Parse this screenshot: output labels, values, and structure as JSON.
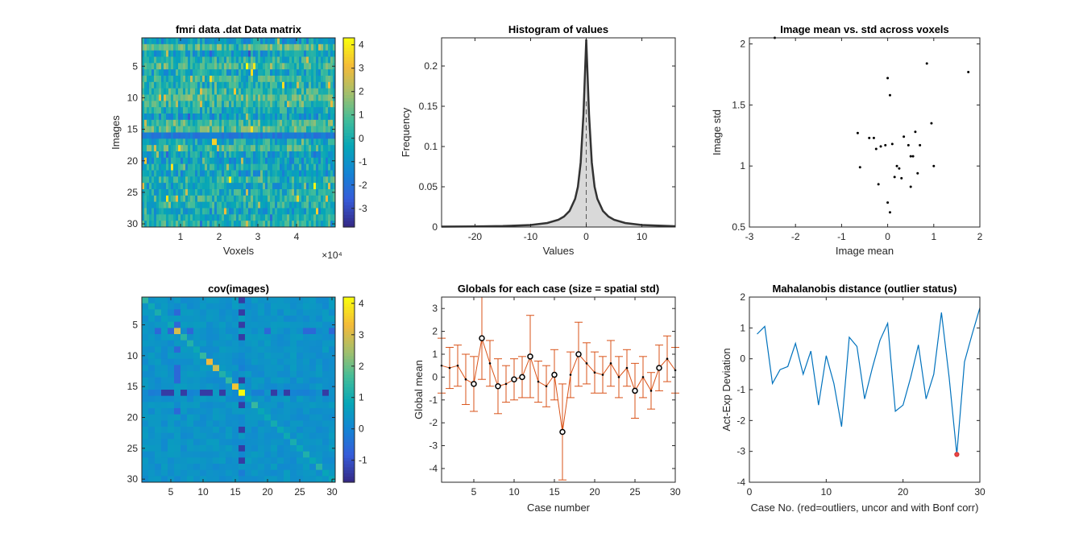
{
  "figure_title": "",
  "panels": [
    {
      "title": "fmri data .dat Data matrix",
      "xlabel": "Voxels",
      "ylabel": "Images",
      "exponent_label": "×10⁴",
      "xticks": [
        "1",
        "2",
        "3",
        "4"
      ],
      "yticks": [
        "5",
        "10",
        "15",
        "20",
        "25",
        "30"
      ],
      "cbar_ticks": [
        "4",
        "3",
        "2",
        "1",
        "0",
        "-1",
        "-2",
        "-3"
      ]
    },
    {
      "title": "Histogram of values",
      "xlabel": "Values",
      "ylabel": "Frequency",
      "xticks": [
        "-20",
        "-10",
        "0",
        "10"
      ],
      "yticks": [
        "0",
        "0.05",
        "0.1",
        "0.15",
        "0.2"
      ]
    },
    {
      "title": "Image mean vs. std across voxels",
      "xlabel": "Image mean",
      "ylabel": "Image std",
      "xticks": [
        "-3",
        "-2",
        "-1",
        "0",
        "1",
        "2"
      ],
      "yticks": [
        "0.5",
        "1",
        "1.5",
        "2"
      ]
    },
    {
      "title": "cov(images)",
      "xlabel": "",
      "ylabel": "",
      "xticks": [
        "5",
        "10",
        "15",
        "20",
        "25",
        "30"
      ],
      "yticks": [
        "5",
        "10",
        "15",
        "20",
        "25",
        "30"
      ],
      "cbar_ticks": [
        "4",
        "3",
        "2",
        "1",
        "0",
        "-1"
      ]
    },
    {
      "title": "Globals for each case (size = spatial std)",
      "xlabel": "Case number",
      "ylabel": "Global mean",
      "xticks": [
        "5",
        "10",
        "15",
        "20",
        "25",
        "30"
      ],
      "yticks": [
        "3",
        "2",
        "1",
        "0",
        "-1",
        "-2",
        "-3",
        "-4"
      ]
    },
    {
      "title": "Mahalanobis distance (outlier status)",
      "xlabel": "Case No. (red=outliers, uncor and with Bonf corr)",
      "ylabel": "Act-Exp Deviation",
      "xticks": [
        "0",
        "10",
        "20",
        "30"
      ],
      "yticks": [
        "2",
        "1",
        "0",
        "-1",
        "-2",
        "-3",
        "-4"
      ]
    }
  ],
  "colors": {
    "line": "#0072BD",
    "errorbar": "#D95319",
    "outlier": "#EE4444",
    "hist_fill": "#D9D9D9",
    "axis": "#262626"
  },
  "chart_data": [
    {
      "type": "heatmap",
      "title": "fmri data .dat Data matrix",
      "xlabel": "Voxels",
      "ylabel": "Images",
      "xlim": [
        0,
        50000
      ],
      "ylim": [
        0.5,
        30.5
      ],
      "rows": 30,
      "color_range": [
        -3.8,
        4.3
      ],
      "colormap": "parula"
    },
    {
      "type": "area",
      "title": "Histogram of values",
      "xlabel": "Values",
      "ylabel": "Frequency",
      "xlim": [
        -26,
        16
      ],
      "ylim": [
        0,
        0.235
      ],
      "x": [
        -26,
        -20,
        -15,
        -10,
        -7,
        -5,
        -4,
        -3,
        -2,
        -1.5,
        -1,
        -0.5,
        0,
        0.5,
        1,
        1.5,
        2,
        3,
        4,
        5,
        7,
        10,
        16
      ],
      "y": [
        0.0005,
        0.0008,
        0.0012,
        0.0025,
        0.005,
        0.009,
        0.013,
        0.02,
        0.035,
        0.05,
        0.08,
        0.14,
        0.233,
        0.14,
        0.08,
        0.05,
        0.035,
        0.02,
        0.013,
        0.009,
        0.005,
        0.0025,
        0.001
      ],
      "mean_line": 0
    },
    {
      "type": "scatter",
      "title": "Image mean vs. std across voxels",
      "xlabel": "Image mean",
      "ylabel": "Image std",
      "xlim": [
        -3,
        2
      ],
      "ylim": [
        0.5,
        2.05
      ],
      "x": [
        -2.45,
        -0.65,
        -0.4,
        -0.3,
        -0.25,
        -0.15,
        -0.05,
        0.0,
        0.05,
        0.1,
        0.15,
        0.2,
        0.3,
        0.35,
        0.45,
        0.5,
        0.55,
        0.6,
        0.65,
        0.7,
        0.85,
        0.95,
        1.0,
        1.75,
        -0.6,
        -0.2,
        0.05,
        0.0,
        0.25,
        0.5
      ],
      "y": [
        2.05,
        1.27,
        1.23,
        1.23,
        1.14,
        1.16,
        1.17,
        1.72,
        1.58,
        1.18,
        0.91,
        1.0,
        0.9,
        1.24,
        1.17,
        1.08,
        1.08,
        1.28,
        0.94,
        1.17,
        1.84,
        1.35,
        1.0,
        1.77,
        0.99,
        0.85,
        0.62,
        0.7,
        0.98,
        0.83
      ]
    },
    {
      "type": "heatmap",
      "title": "cov(images)",
      "xlim": [
        0.5,
        30.5
      ],
      "ylim": [
        0.5,
        30.5
      ],
      "size": 30,
      "color_range": [
        -1.7,
        4.2
      ],
      "colormap": "parula"
    },
    {
      "type": "line",
      "title": "Globals for each case (size = spatial std)",
      "xlabel": "Case number",
      "ylabel": "Global mean",
      "xlim": [
        1,
        30
      ],
      "ylim": [
        -4.6,
        3.5
      ],
      "x": [
        1,
        2,
        3,
        4,
        5,
        6,
        7,
        8,
        9,
        10,
        11,
        12,
        13,
        14,
        15,
        16,
        17,
        18,
        19,
        20,
        21,
        22,
        23,
        24,
        25,
        26,
        27,
        28,
        29,
        30
      ],
      "y": [
        0.5,
        0.4,
        0.5,
        -0.1,
        -0.3,
        1.7,
        0.6,
        -0.4,
        -0.3,
        -0.1,
        0.0,
        0.9,
        -0.2,
        -0.4,
        0.1,
        -2.4,
        0.1,
        1.0,
        0.6,
        0.2,
        0.1,
        0.6,
        0.0,
        0.4,
        -0.6,
        0.0,
        -0.6,
        0.4,
        0.8,
        0.3
      ],
      "std": [
        1.2,
        0.9,
        0.9,
        1.1,
        1.2,
        1.8,
        1.0,
        1.2,
        0.8,
        0.9,
        0.9,
        1.8,
        0.9,
        0.9,
        1.1,
        2.1,
        1.0,
        1.4,
        0.9,
        0.9,
        0.8,
        1.0,
        0.9,
        0.8,
        1.2,
        0.9,
        0.8,
        1.0,
        1.0,
        1.0
      ],
      "marked": [
        5,
        6,
        8,
        10,
        11,
        12,
        15,
        16,
        18,
        25,
        28
      ]
    },
    {
      "type": "line",
      "title": "Mahalanobis distance (outlier status)",
      "xlabel": "Case No. (red=outliers, uncor and with Bonf corr)",
      "ylabel": "Act-Exp Deviation",
      "xlim": [
        0,
        30
      ],
      "ylim": [
        -4,
        2
      ],
      "x": [
        1,
        2,
        3,
        4,
        5,
        6,
        7,
        8,
        9,
        10,
        11,
        12,
        13,
        14,
        15,
        16,
        17,
        18,
        19,
        20,
        21,
        22,
        23,
        24,
        25,
        26,
        27,
        28,
        29,
        30
      ],
      "y": [
        0.8,
        1.05,
        -0.8,
        -0.35,
        -0.25,
        0.5,
        -0.5,
        0.25,
        -1.5,
        0.1,
        -0.8,
        -2.2,
        0.7,
        0.4,
        -1.3,
        -0.3,
        0.6,
        1.15,
        -1.7,
        -1.5,
        -0.6,
        0.45,
        -1.3,
        -0.5,
        1.5,
        -0.6,
        -3.1,
        -0.1,
        0.8,
        1.65
      ],
      "outliers": [
        27
      ]
    }
  ]
}
